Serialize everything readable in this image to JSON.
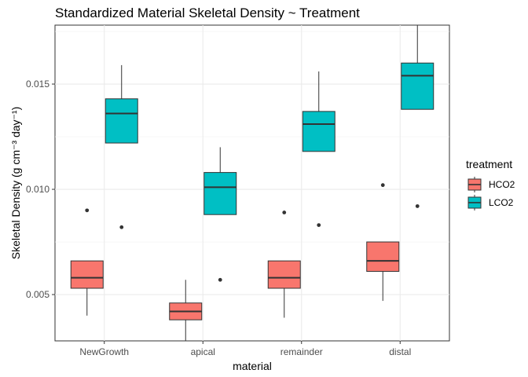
{
  "chart_data": {
    "type": "boxplot",
    "title": "Standardized Material Skeletal Density ~ Treatment",
    "xlabel": "material",
    "ylabel": "Skeletal Density (g cm⁻³ day⁻¹)",
    "categories": [
      "NewGrowth",
      "apical",
      "remainder",
      "distal"
    ],
    "ylim": [
      0.0028,
      0.0178
    ],
    "yticks": [
      0.005,
      0.01,
      0.015
    ],
    "ytick_labels": [
      "0.005",
      "0.010",
      "0.015"
    ],
    "grid": true,
    "legend": {
      "title": "treatment",
      "position": "right"
    },
    "series": [
      {
        "name": "HCO2",
        "color": "#F8766D",
        "boxes": [
          {
            "category": "NewGrowth",
            "whisker_low": 0.004,
            "q1": 0.0053,
            "median": 0.0058,
            "q3": 0.0066,
            "whisker_high": 0.0066,
            "outliers": [
              0.009
            ]
          },
          {
            "category": "apical",
            "whisker_low": 0.0028,
            "q1": 0.0038,
            "median": 0.0042,
            "q3": 0.0046,
            "whisker_high": 0.0057,
            "outliers": []
          },
          {
            "category": "remainder",
            "whisker_low": 0.0039,
            "q1": 0.0053,
            "median": 0.0058,
            "q3": 0.0066,
            "whisker_high": 0.0066,
            "outliers": [
              0.0089
            ]
          },
          {
            "category": "distal",
            "whisker_low": 0.0047,
            "q1": 0.0061,
            "median": 0.0066,
            "q3": 0.0075,
            "whisker_high": 0.0075,
            "outliers": [
              0.0102
            ]
          }
        ]
      },
      {
        "name": "LCO2",
        "color": "#00BFC4",
        "boxes": [
          {
            "category": "NewGrowth",
            "whisker_low": 0.0122,
            "q1": 0.0122,
            "median": 0.0136,
            "q3": 0.0143,
            "whisker_high": 0.0159,
            "outliers": [
              0.0082
            ]
          },
          {
            "category": "apical",
            "whisker_low": 0.0088,
            "q1": 0.0088,
            "median": 0.0101,
            "q3": 0.0108,
            "whisker_high": 0.012,
            "outliers": [
              0.0057
            ]
          },
          {
            "category": "remainder",
            "whisker_low": 0.0118,
            "q1": 0.0118,
            "median": 0.0131,
            "q3": 0.0137,
            "whisker_high": 0.0156,
            "outliers": [
              0.0083
            ]
          },
          {
            "category": "distal",
            "whisker_low": 0.0138,
            "q1": 0.0138,
            "median": 0.0154,
            "q3": 0.016,
            "whisker_high": 0.0178,
            "outliers": [
              0.0092
            ]
          }
        ]
      }
    ]
  }
}
